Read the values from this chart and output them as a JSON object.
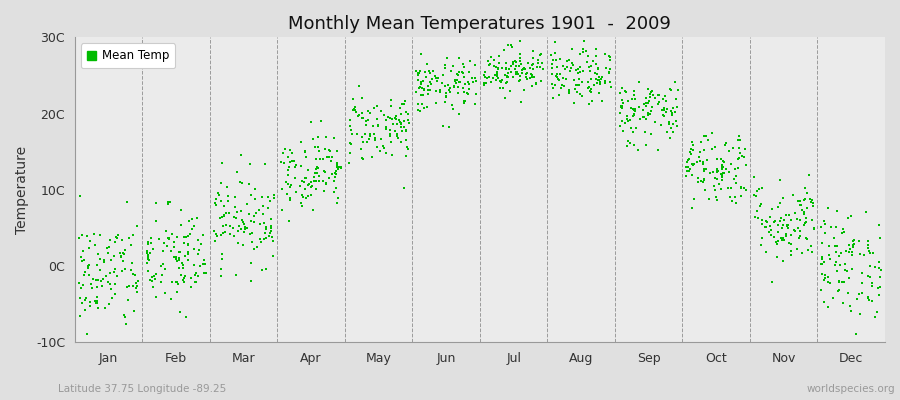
{
  "title": "Monthly Mean Temperatures 1901  -  2009",
  "ylabel": "Temperature",
  "xlabel_bottom_left": "Latitude 37.75 Longitude -89.25",
  "xlabel_bottom_right": "worldspecies.org",
  "legend_label": "Mean Temp",
  "dot_color": "#00bb00",
  "bg_color": "#e0e0e0",
  "plot_bg_color": "#ebebeb",
  "grid_color": "#666666",
  "ylim": [
    -10,
    30
  ],
  "yticks": [
    -10,
    0,
    10,
    20,
    30
  ],
  "ytick_labels": [
    "-10C",
    "0C",
    "10C",
    "20C",
    "30C"
  ],
  "months": [
    "Jan",
    "Feb",
    "Mar",
    "Apr",
    "May",
    "Jun",
    "Jul",
    "Aug",
    "Sep",
    "Oct",
    "Nov",
    "Dec"
  ],
  "num_years": 109,
  "seed": 42,
  "mean_temps": [
    -1.2,
    0.8,
    6.2,
    12.5,
    18.2,
    23.5,
    25.8,
    24.8,
    20.2,
    13.0,
    5.8,
    0.2
  ],
  "std_temps": [
    3.8,
    3.5,
    3.0,
    2.5,
    2.3,
    1.8,
    1.5,
    1.8,
    2.2,
    2.5,
    2.8,
    3.5
  ],
  "marker_size": 3
}
